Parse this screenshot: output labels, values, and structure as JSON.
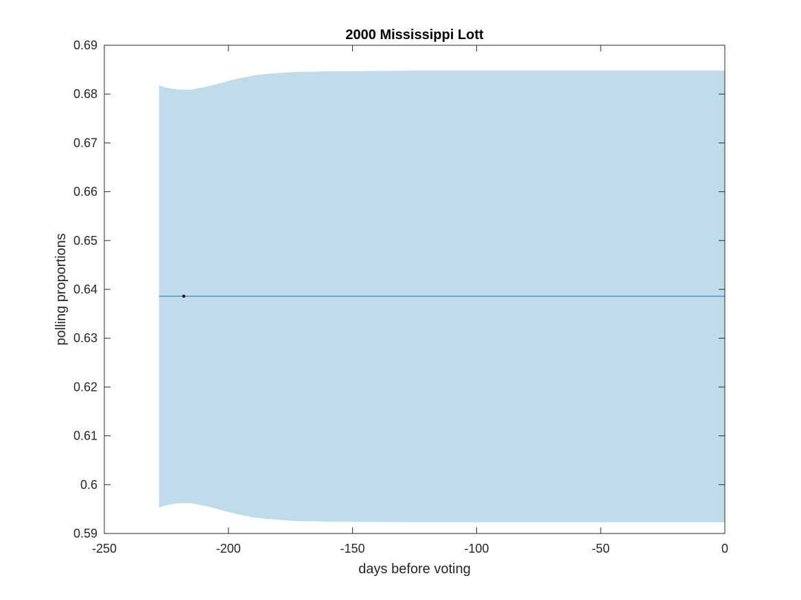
{
  "chart_data": {
    "type": "line",
    "title": "2000 Mississippi Lott",
    "xlabel": "days before voting",
    "ylabel": "polling proportions",
    "xlim": [
      -250,
      0
    ],
    "ylim": [
      0.59,
      0.69
    ],
    "xticks": [
      -250,
      -200,
      -150,
      -100,
      -50,
      0
    ],
    "yticks": [
      0.59,
      0.6,
      0.61,
      0.62,
      0.63,
      0.64,
      0.65,
      0.66,
      0.67,
      0.68,
      0.69
    ],
    "xtick_labels": [
      "-250",
      "-200",
      "-150",
      "-100",
      "-50",
      "0"
    ],
    "ytick_labels": [
      "0.59",
      "0.6",
      "0.61",
      "0.62",
      "0.63",
      "0.64",
      "0.65",
      "0.66",
      "0.67",
      "0.68",
      "0.69"
    ],
    "grid": false,
    "band": {
      "color": "#c0dcea",
      "x": [
        -228,
        -225,
        -220,
        -215,
        -210,
        -205,
        -200,
        -195,
        -190,
        -185,
        -180,
        -175,
        -170,
        -165,
        -160,
        -150,
        -125,
        -100,
        -50,
        0
      ],
      "upper": [
        0.6818,
        0.6813,
        0.6809,
        0.6809,
        0.6814,
        0.682,
        0.6827,
        0.6833,
        0.6838,
        0.6841,
        0.6843,
        0.6845,
        0.6846,
        0.6846,
        0.6847,
        0.6847,
        0.6848,
        0.6848,
        0.6848,
        0.6848
      ],
      "lower": [
        0.5953,
        0.5958,
        0.5962,
        0.5962,
        0.5957,
        0.5951,
        0.5944,
        0.5938,
        0.5933,
        0.593,
        0.5928,
        0.5926,
        0.5925,
        0.5925,
        0.5924,
        0.5924,
        0.5923,
        0.5923,
        0.5923,
        0.5923
      ]
    },
    "series": [
      {
        "values": [
          [
            -228,
            0.6386
          ],
          [
            0,
            0.6386
          ]
        ],
        "color": "#0072bd"
      }
    ],
    "points": [
      {
        "x": -218,
        "y": 0.6386,
        "color": "#000000"
      }
    ]
  }
}
